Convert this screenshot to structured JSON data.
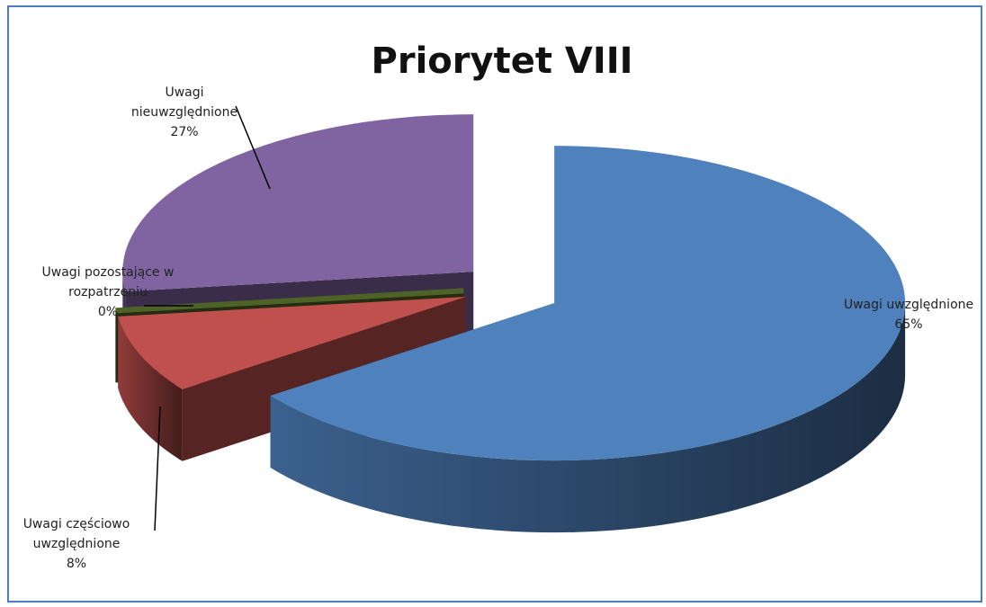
{
  "chart_data": {
    "type": "pie",
    "title": "Priorytet VIII",
    "categories": [
      "Uwagi uwzględnione",
      "Uwagi częściowo uwzględnione",
      "Uwagi pozostające w rozpatrzeniu",
      "Uwagi nieuwzględnione"
    ],
    "values": [
      65,
      8,
      0,
      27
    ],
    "value_labels": [
      "65%",
      "8%",
      "0%",
      "27%"
    ],
    "colors": [
      "#4f81bd",
      "#c0504d",
      "#4f6228",
      "#8064a2"
    ]
  }
}
